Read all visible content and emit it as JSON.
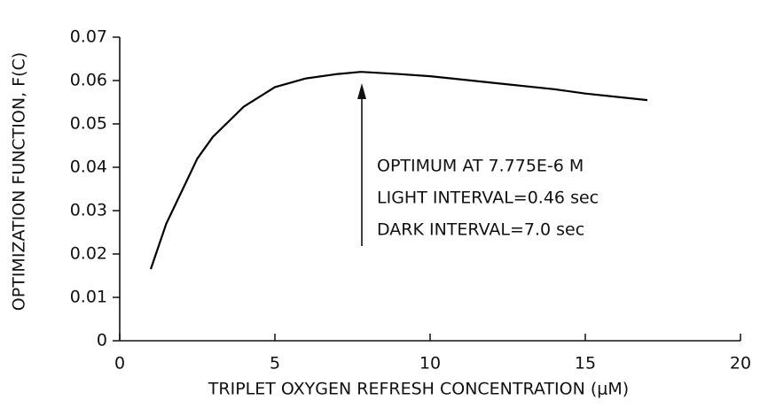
{
  "chart_data": {
    "type": "line",
    "xlabel": "TRIPLET OXYGEN REFRESH CONCENTRATION (μM)",
    "ylabel": "OPTIMIZATION FUNCTION, F(C)",
    "x": [
      1,
      1.5,
      2,
      2.5,
      3,
      4,
      5,
      6,
      7,
      7.775,
      9,
      10,
      12,
      14,
      15,
      17
    ],
    "values": [
      0.0165,
      0.027,
      0.0345,
      0.042,
      0.047,
      0.054,
      0.0585,
      0.0605,
      0.0615,
      0.062,
      0.0615,
      0.061,
      0.0595,
      0.058,
      0.057,
      0.0555
    ],
    "color": "#000000",
    "xlim": [
      0,
      20
    ],
    "xticks": [
      0,
      5,
      10,
      15,
      20
    ],
    "ylim": [
      0,
      0.07
    ],
    "yticks": [
      0,
      0.01,
      0.02,
      0.03,
      0.04,
      0.05,
      0.06,
      0.07
    ],
    "annotations": [
      "OPTIMUM AT 7.775E-6 M",
      "LIGHT INTERVAL=0.46 sec",
      "DARK INTERVAL=7.0 sec"
    ]
  }
}
